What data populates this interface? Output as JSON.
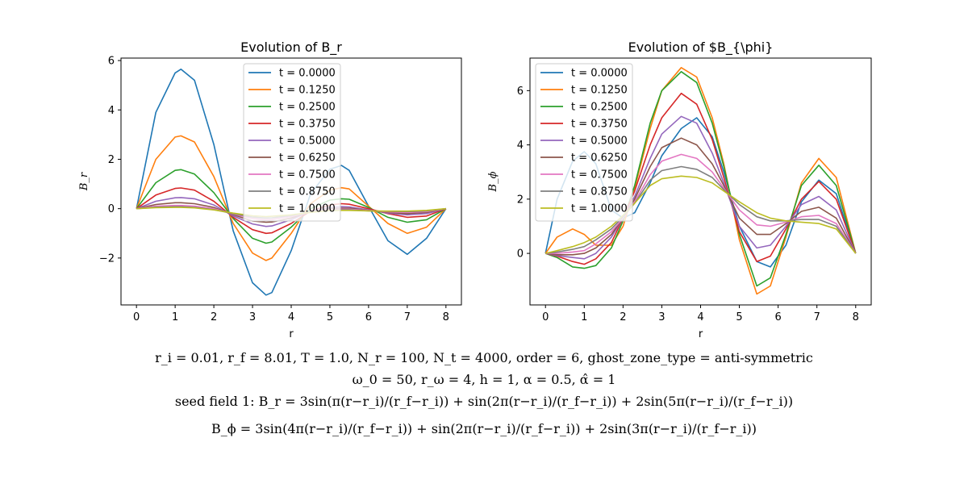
{
  "chart_data": [
    {
      "type": "line",
      "title": "Evolution of B_r",
      "xlabel": "r",
      "ylabel": "B_r",
      "xlim": [
        -0.4,
        8.4
      ],
      "ylim": [
        -3.9,
        6.1
      ],
      "xticks": [
        0,
        1,
        2,
        3,
        4,
        5,
        6,
        7,
        8
      ],
      "xtick_labels": [
        "0",
        "1",
        "2",
        "3",
        "4",
        "5",
        "6",
        "7",
        "8"
      ],
      "yticks": [
        -2,
        0,
        2,
        4,
        6
      ],
      "ytick_labels": [
        "−2",
        "0",
        "2",
        "4",
        "6"
      ],
      "grid": false,
      "legend": "top-center",
      "x": [
        0,
        0.5,
        1,
        1.15,
        1.5,
        2,
        2.5,
        3,
        3.35,
        3.5,
        4,
        4.5,
        5,
        5.3,
        5.5,
        6,
        6.5,
        7,
        7.5,
        8
      ],
      "series": [
        {
          "name": "t = 0.0000",
          "color": "#1f77b4",
          "values": [
            0,
            3.9,
            5.5,
            5.65,
            5.2,
            2.6,
            -0.9,
            -3.0,
            -3.5,
            -3.4,
            -1.7,
            0.6,
            1.6,
            1.75,
            1.55,
            0.1,
            -1.3,
            -1.85,
            -1.2,
            0
          ]
        },
        {
          "name": "t = 0.1250",
          "color": "#ff7f0e",
          "values": [
            0,
            2.0,
            2.9,
            2.95,
            2.7,
            1.3,
            -0.6,
            -1.8,
            -2.1,
            -2.0,
            -1.0,
            0.2,
            0.75,
            0.85,
            0.8,
            0.1,
            -0.6,
            -1.0,
            -0.75,
            0
          ]
        },
        {
          "name": "t = 0.2500",
          "color": "#2ca02c",
          "values": [
            0,
            1.05,
            1.55,
            1.58,
            1.4,
            0.65,
            -0.4,
            -1.2,
            -1.4,
            -1.35,
            -0.75,
            0.0,
            0.35,
            0.4,
            0.38,
            0.05,
            -0.35,
            -0.55,
            -0.45,
            0
          ]
        },
        {
          "name": "t = 0.3750",
          "color": "#d62728",
          "values": [
            0,
            0.55,
            0.82,
            0.84,
            0.75,
            0.3,
            -0.35,
            -0.85,
            -1.0,
            -0.98,
            -0.6,
            -0.1,
            0.15,
            0.2,
            0.18,
            0.0,
            -0.2,
            -0.35,
            -0.3,
            0
          ]
        },
        {
          "name": "t = 0.5000",
          "color": "#9467bd",
          "values": [
            0,
            0.3,
            0.44,
            0.45,
            0.4,
            0.15,
            -0.3,
            -0.62,
            -0.72,
            -0.7,
            -0.45,
            -0.1,
            0.05,
            0.08,
            0.07,
            -0.05,
            -0.18,
            -0.25,
            -0.2,
            0
          ]
        },
        {
          "name": "t = 0.6250",
          "color": "#8c564b",
          "values": [
            0,
            0.17,
            0.24,
            0.24,
            0.2,
            0.05,
            -0.25,
            -0.5,
            -0.55,
            -0.54,
            -0.38,
            -0.12,
            0.0,
            0.02,
            0.02,
            -0.07,
            -0.15,
            -0.2,
            -0.15,
            0
          ]
        },
        {
          "name": "t = 0.7500",
          "color": "#e377c2",
          "values": [
            0,
            0.1,
            0.13,
            0.13,
            0.1,
            0.0,
            -0.22,
            -0.4,
            -0.45,
            -0.44,
            -0.32,
            -0.14,
            -0.04,
            -0.02,
            -0.02,
            -0.08,
            -0.13,
            -0.15,
            -0.12,
            0
          ]
        },
        {
          "name": "t = 0.8750",
          "color": "#7f7f7f",
          "values": [
            0,
            0.06,
            0.08,
            0.08,
            0.05,
            -0.04,
            -0.2,
            -0.34,
            -0.38,
            -0.37,
            -0.28,
            -0.14,
            -0.06,
            -0.05,
            -0.05,
            -0.09,
            -0.11,
            -0.12,
            -0.09,
            0
          ]
        },
        {
          "name": "t = 1.0000",
          "color": "#bcbd22",
          "values": [
            0,
            0.04,
            0.05,
            0.05,
            0.03,
            -0.05,
            -0.18,
            -0.29,
            -0.32,
            -0.31,
            -0.25,
            -0.15,
            -0.08,
            -0.07,
            -0.07,
            -0.09,
            -0.1,
            -0.1,
            -0.07,
            0
          ]
        }
      ]
    },
    {
      "type": "line",
      "title": "Evolution of $B_{\\phi}",
      "xlabel": "r",
      "ylabel": "B_ϕ",
      "xlim": [
        -0.4,
        8.4
      ],
      "ylim": [
        -1.9,
        7.2
      ],
      "xticks": [
        0,
        1,
        2,
        3,
        4,
        5,
        6,
        7,
        8
      ],
      "xtick_labels": [
        "0",
        "1",
        "2",
        "3",
        "4",
        "5",
        "6",
        "7",
        "8"
      ],
      "yticks": [
        0,
        2,
        4,
        6
      ],
      "ytick_labels": [
        "0",
        "2",
        "4",
        "6"
      ],
      "grid": false,
      "legend": "top-left",
      "x": [
        0,
        0.3,
        0.7,
        1.0,
        1.3,
        1.7,
        2.0,
        2.3,
        2.7,
        3.0,
        3.5,
        3.9,
        4.3,
        4.6,
        5.0,
        5.45,
        5.8,
        6.2,
        6.6,
        7.05,
        7.5,
        8
      ],
      "series": [
        {
          "name": "t = 0.0000",
          "color": "#1f77b4",
          "values": [
            0,
            2.0,
            3.4,
            3.75,
            3.3,
            1.6,
            1.3,
            1.5,
            2.6,
            3.6,
            4.6,
            5.0,
            4.3,
            3.0,
            1.0,
            -0.3,
            -0.5,
            0.3,
            1.9,
            2.7,
            2.2,
            0
          ]
        },
        {
          "name": "t = 0.1250",
          "color": "#ff7f0e",
          "values": [
            0,
            0.6,
            0.9,
            0.7,
            0.3,
            0.3,
            1.0,
            2.4,
            4.6,
            6.0,
            6.85,
            6.5,
            5.0,
            3.3,
            0.5,
            -1.5,
            -1.2,
            0.6,
            2.6,
            3.5,
            2.8,
            0
          ]
        },
        {
          "name": "t = 0.2500",
          "color": "#2ca02c",
          "values": [
            0,
            -0.15,
            -0.5,
            -0.55,
            -0.45,
            0.2,
            1.2,
            2.5,
            4.8,
            6.0,
            6.7,
            6.3,
            4.8,
            3.2,
            0.7,
            -1.2,
            -0.9,
            0.7,
            2.5,
            3.25,
            2.5,
            0
          ]
        },
        {
          "name": "t = 0.3750",
          "color": "#d62728",
          "values": [
            0,
            -0.1,
            -0.3,
            -0.4,
            -0.2,
            0.4,
            1.3,
            2.3,
            4.0,
            5.0,
            5.9,
            5.5,
            4.2,
            2.8,
            0.8,
            -0.3,
            -0.1,
            0.9,
            2.0,
            2.65,
            2.0,
            0
          ]
        },
        {
          "name": "t = 0.5000",
          "color": "#9467bd",
          "values": [
            0,
            -0.08,
            -0.15,
            -0.2,
            0.0,
            0.6,
            1.3,
            2.1,
            3.5,
            4.4,
            5.05,
            4.8,
            3.7,
            2.6,
            1.0,
            0.2,
            0.3,
            1.0,
            1.8,
            2.1,
            1.6,
            0
          ]
        },
        {
          "name": "t = 0.6250",
          "color": "#8c564b",
          "values": [
            0,
            -0.05,
            -0.05,
            0.0,
            0.2,
            0.7,
            1.3,
            2.0,
            3.2,
            3.9,
            4.25,
            4.0,
            3.3,
            2.5,
            1.3,
            0.7,
            0.7,
            1.1,
            1.55,
            1.7,
            1.3,
            0
          ]
        },
        {
          "name": "t = 0.7500",
          "color": "#e377c2",
          "values": [
            0,
            0.0,
            0.05,
            0.1,
            0.35,
            0.8,
            1.3,
            1.9,
            2.9,
            3.4,
            3.65,
            3.5,
            3.0,
            2.4,
            1.6,
            1.05,
            1.0,
            1.15,
            1.35,
            1.4,
            1.1,
            0
          ]
        },
        {
          "name": "t = 0.8750",
          "color": "#7f7f7f",
          "values": [
            0,
            0.05,
            0.15,
            0.25,
            0.5,
            0.9,
            1.35,
            1.85,
            2.7,
            3.05,
            3.2,
            3.1,
            2.8,
            2.35,
            1.8,
            1.35,
            1.2,
            1.2,
            1.25,
            1.25,
            1.0,
            0
          ]
        },
        {
          "name": "t = 1.0000",
          "color": "#bcbd22",
          "values": [
            0,
            0.1,
            0.25,
            0.4,
            0.6,
            1.0,
            1.4,
            1.85,
            2.5,
            2.75,
            2.85,
            2.8,
            2.6,
            2.3,
            1.9,
            1.5,
            1.3,
            1.2,
            1.15,
            1.1,
            0.9,
            0
          ]
        }
      ]
    }
  ],
  "caption": {
    "line1": "r_i = 0.01, r_f = 8.01, T = 1.0, N_r = 100, N_t = 4000, order = 6, ghost_zone_type = anti-symmetric",
    "line2": "ω_0 = 50, r_ω = 4, h = 1, α = 0.5, α̂ = 1",
    "line3": "seed field 1: B_r = 3sin(π(r−r_i)/(r_f−r_i)) + sin(2π(r−r_i)/(r_f−r_i)) + 2sin(5π(r−r_i)/(r_f−r_i))",
    "line4": "B_ϕ = 3sin(4π(r−r_i)/(r_f−r_i)) + sin(2π(r−r_i)/(r_f−r_i)) + 2sin(3π(r−r_i)/(r_f−r_i))"
  }
}
